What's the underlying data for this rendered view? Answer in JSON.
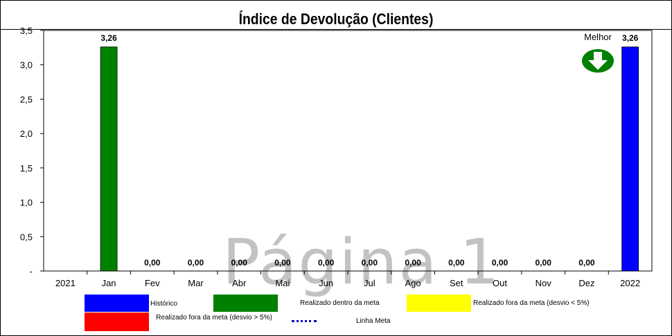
{
  "chart_data": {
    "type": "bar",
    "title": "Índice de Devolução (Clientes)",
    "categories": [
      "2021",
      "Jan",
      "Fev",
      "Mar",
      "Abr",
      "Mai",
      "Jun",
      "Jul",
      "Ago",
      "Set",
      "Out",
      "Nov",
      "Dez",
      "2022"
    ],
    "values": [
      null,
      3.26,
      0.0,
      0.0,
      0.0,
      0.0,
      0.0,
      0.0,
      0.0,
      0.0,
      0.0,
      0.0,
      0.0,
      3.26
    ],
    "data_labels": [
      "",
      "3,26",
      "0,00",
      "0,00",
      "0,00",
      "0,00",
      "0,00",
      "0,00",
      "0,00",
      "0,00",
      "0,00",
      "0,00",
      "0,00",
      "3,26"
    ],
    "bar_colors": [
      "#0000ff",
      "#008000",
      "#008000",
      "#008000",
      "#008000",
      "#008000",
      "#008000",
      "#008000",
      "#008000",
      "#008000",
      "#008000",
      "#008000",
      "#008000",
      "#0000ff"
    ],
    "ylim": [
      0,
      3.5
    ],
    "yticks": [
      0,
      0.5,
      1.0,
      1.5,
      2.0,
      2.5,
      3.0,
      3.5
    ],
    "ytick_labels": [
      "-",
      "0,5",
      "1,0",
      "1,5",
      "2,0",
      "2,5",
      "3,0",
      "3,5"
    ],
    "xlabel": "",
    "ylabel": "",
    "grid": false,
    "legend_position": "bottom"
  },
  "indicator": {
    "label": "Melhor",
    "icon": "down-arrow-icon",
    "color": "#008000"
  },
  "watermark": "Página 1",
  "legend": {
    "historico": {
      "label": "Histórico",
      "color": "#0000ff"
    },
    "dentro_meta": {
      "label": "Realizado dentro da meta",
      "color": "#008000"
    },
    "fora_meta_menor": {
      "label": "Realizado fora da meta (desvio < 5%)",
      "color": "#ffff00"
    },
    "fora_meta_maior": {
      "label": "Realizado fora da meta (desvio > 5%)",
      "color": "#ff0000"
    },
    "linha_meta": {
      "label": "Linha Meta",
      "color": "#0000cc"
    }
  }
}
